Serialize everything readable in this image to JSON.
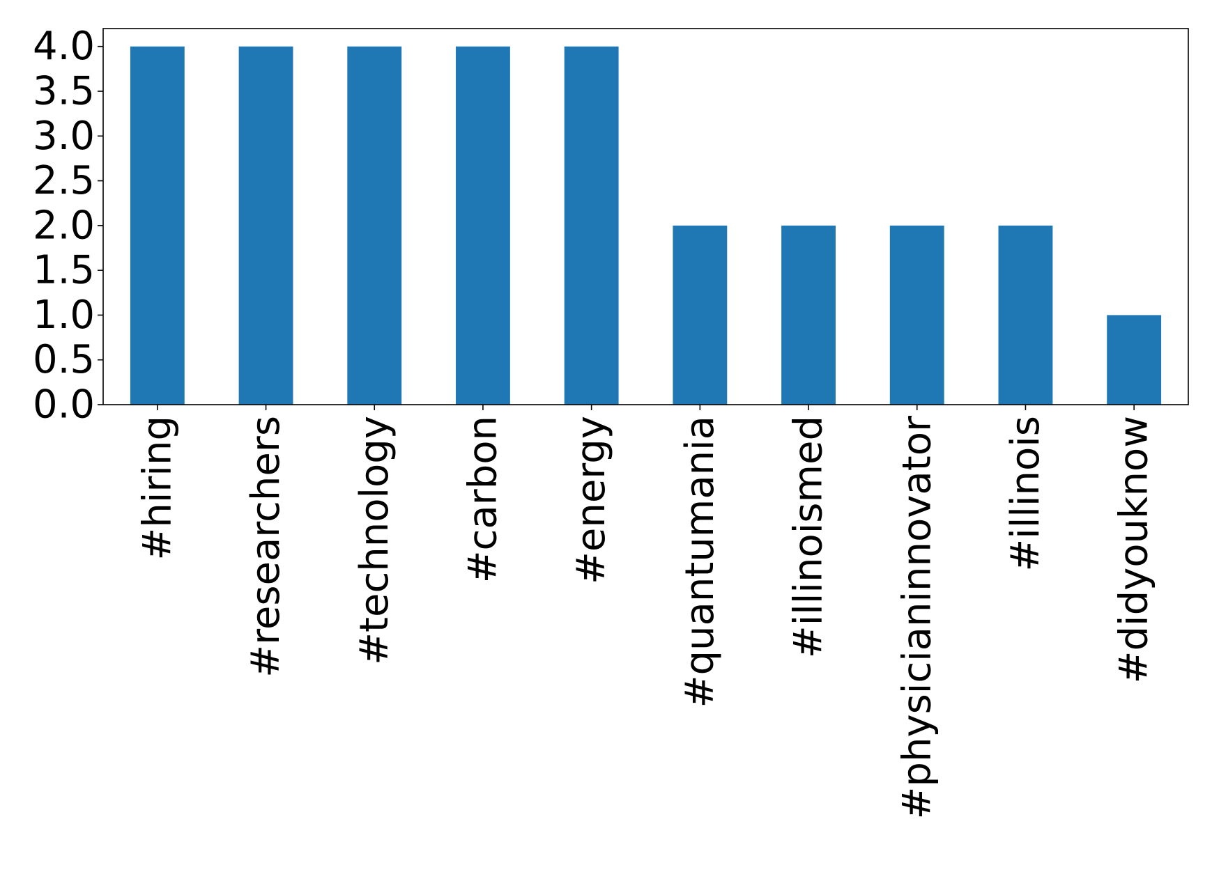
{
  "chart_data": {
    "type": "bar",
    "title": "",
    "xlabel": "",
    "ylabel": "",
    "categories": [
      "#hiring",
      "#researchers",
      "#technology",
      "#carbon",
      "#energy",
      "#quantumania",
      "#illinoismed",
      "#physicianinnovator",
      "#illinois",
      "#didyouknow"
    ],
    "values": [
      4,
      4,
      4,
      4,
      4,
      2,
      2,
      2,
      2,
      1
    ],
    "ylim": [
      0,
      4.2
    ],
    "yticks": [
      "0.0",
      "0.5",
      "1.0",
      "1.5",
      "2.0",
      "2.5",
      "3.0",
      "3.5",
      "4.0"
    ],
    "grid": false,
    "legend": "none",
    "bar_color": "#1f77b4"
  }
}
